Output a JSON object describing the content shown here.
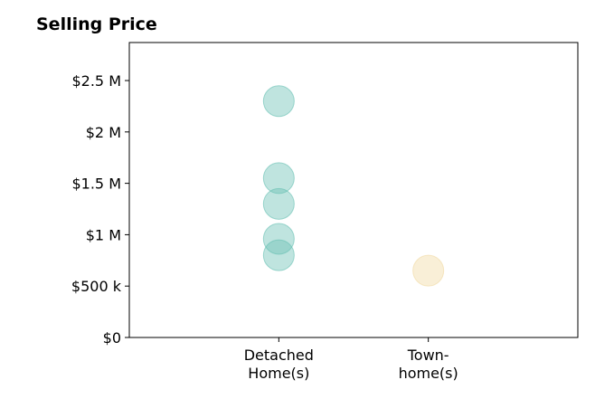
{
  "chart_data": {
    "type": "scatter",
    "title": "Selling Price",
    "xlabel": "",
    "ylabel": "",
    "categories": [
      {
        "lines": [
          "Detached",
          "Home(s)"
        ]
      },
      {
        "lines": [
          "Town-",
          "home(s)"
        ]
      }
    ],
    "x_range": [
      0,
      3
    ],
    "ylim": [
      0,
      2870000
    ],
    "yticks": [
      {
        "value": 0,
        "label": "$0"
      },
      {
        "value": 500000,
        "label": "$500 k"
      },
      {
        "value": 1000000,
        "label": "$1 M"
      },
      {
        "value": 1500000,
        "label": "$1.5 M"
      },
      {
        "value": 2000000,
        "label": "$2 M"
      },
      {
        "value": 2500000,
        "label": "$2.5 M"
      }
    ],
    "grid": false,
    "series": [
      {
        "category_index": 0,
        "color": "#66bfb3",
        "values": [
          2300000,
          1550000,
          1300000,
          960000,
          800000
        ]
      },
      {
        "category_index": 1,
        "color": "#f0d9a0",
        "values": [
          650000
        ]
      }
    ]
  }
}
